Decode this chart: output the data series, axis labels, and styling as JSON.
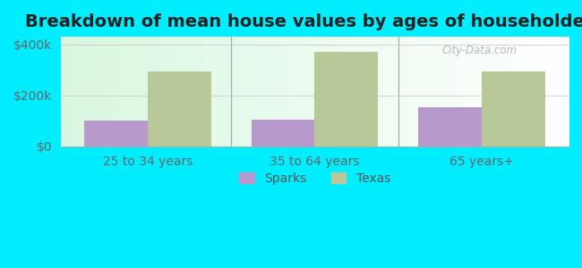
{
  "title": "Breakdown of mean house values by ages of householders",
  "categories": [
    "25 to 34 years",
    "35 to 64 years",
    "65 years+"
  ],
  "sparks_values": [
    100000,
    105000,
    155000
  ],
  "texas_values": [
    295000,
    370000,
    295000
  ],
  "sparks_color": "#b899cc",
  "texas_color": "#b8c899",
  "background_color": "#00eeff",
  "ylim": [
    0,
    430000
  ],
  "yticks": [
    0,
    200000,
    400000
  ],
  "ytick_labels": [
    "$0",
    "$200k",
    "$400k"
  ],
  "title_fontsize": 14,
  "tick_fontsize": 10,
  "legend_labels": [
    "Sparks",
    "Texas"
  ],
  "bar_width": 0.38
}
